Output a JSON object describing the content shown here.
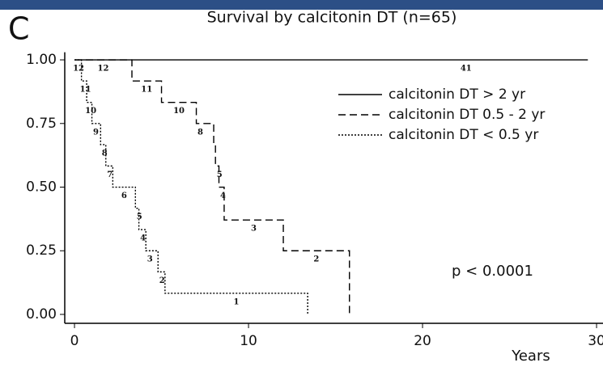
{
  "chart_data": {
    "type": "step",
    "panel_label": "C",
    "title": "Survival by calcitonin DT (n=65)",
    "x_label": "Years",
    "annotation": "p < 0.0001",
    "xlim": [
      -0.56,
      30.37
    ],
    "xticks": [
      0,
      10,
      20,
      30
    ],
    "ylim": [
      -0.035,
      1.03
    ],
    "yticks": [
      {
        "value": 0,
        "label": "0.00"
      },
      {
        "value": 0.25,
        "label": "0.25"
      },
      {
        "value": 0.5,
        "label": "0.50"
      },
      {
        "value": 0.75,
        "label": "0.75"
      },
      {
        "value": 1,
        "label": "1.00"
      }
    ],
    "legend": "upper right",
    "series": [
      {
        "name": "calcitonin DT > 2 yr",
        "color": "#000000",
        "dash": "solid",
        "x": [
          0,
          15.5,
          29.5
        ],
        "values": [
          1,
          1,
          1
        ],
        "at_risk": [
          null,
          41,
          null
        ]
      },
      {
        "name": "calcitonin DT  0.5 - 2 yr",
        "color": "#000000",
        "dash": "dashed",
        "x": [
          0,
          3.3,
          5.0,
          7.0,
          8.0,
          8.1,
          8.3,
          8.6,
          12.0,
          15.8
        ],
        "values": [
          1,
          0.917,
          0.833,
          0.75,
          0.667,
          0.583,
          0.5,
          0.371,
          0.25,
          0
        ],
        "at_risk": [
          12,
          11,
          10,
          8,
          null,
          5,
          4,
          3,
          2,
          null
        ]
      },
      {
        "name": "calcitonin DT < 0.5 yr",
        "color": "#000000",
        "dash": "dotted",
        "x": [
          0,
          0.4,
          0.7,
          1.0,
          1.5,
          1.8,
          2.2,
          3.5,
          3.7,
          4.1,
          4.8,
          5.2,
          13.4
        ],
        "values": [
          1,
          0.917,
          0.833,
          0.75,
          0.667,
          0.583,
          0.5,
          0.417,
          0.333,
          0.25,
          0.167,
          0.083,
          0
        ],
        "at_risk": [
          12,
          11,
          10,
          9,
          8,
          7,
          6,
          5,
          4,
          3,
          2,
          1,
          null
        ]
      }
    ]
  }
}
